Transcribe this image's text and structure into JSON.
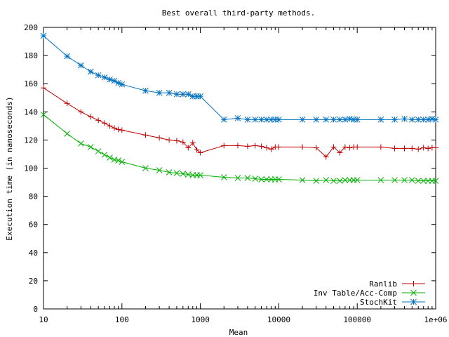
{
  "chart_data": {
    "type": "line",
    "title": "Best overall third-party methods.",
    "xlabel": "Mean",
    "ylabel": "Execution time (in nanoseconds)",
    "xscale": "log",
    "xlim": [
      10,
      1000000
    ],
    "ylim": [
      0,
      200
    ],
    "grid": false,
    "legend_position": "bottom-right",
    "x_ticks": [
      {
        "value": 10,
        "label": "10"
      },
      {
        "value": 100,
        "label": "100"
      },
      {
        "value": 1000,
        "label": "1000"
      },
      {
        "value": 10000,
        "label": "10000"
      },
      {
        "value": 100000,
        "label": "100000"
      },
      {
        "value": 1000000,
        "label": "1e+06"
      }
    ],
    "y_ticks": [
      {
        "value": 0,
        "label": "0"
      },
      {
        "value": 20,
        "label": "20"
      },
      {
        "value": 40,
        "label": "40"
      },
      {
        "value": 60,
        "label": "60"
      },
      {
        "value": 80,
        "label": "80"
      },
      {
        "value": 100,
        "label": "100"
      },
      {
        "value": 120,
        "label": "120"
      },
      {
        "value": 140,
        "label": "140"
      },
      {
        "value": 160,
        "label": "160"
      },
      {
        "value": 180,
        "label": "180"
      },
      {
        "value": 200,
        "label": "200"
      }
    ],
    "series": [
      {
        "name": "Ranlib",
        "color": "#c00000",
        "marker": "plus",
        "x": [
          10,
          20,
          30,
          40,
          50,
          60,
          70,
          80,
          90,
          100,
          200,
          300,
          400,
          500,
          600,
          700,
          800,
          900,
          1000,
          2000,
          3000,
          4000,
          5000,
          6000,
          7000,
          8000,
          9000,
          10000,
          20000,
          30000,
          40000,
          50000,
          60000,
          70000,
          80000,
          90000,
          100000,
          200000,
          300000,
          400000,
          500000,
          600000,
          700000,
          800000,
          900000,
          1000000
        ],
        "y": [
          157,
          146,
          140,
          136.5,
          134,
          132,
          130,
          128.5,
          127.5,
          127,
          123.5,
          121.5,
          120,
          119.5,
          118.5,
          114.5,
          118,
          113,
          111,
          116,
          116,
          115.5,
          116,
          115.5,
          114.5,
          113.5,
          115,
          115,
          115,
          114.5,
          108,
          115,
          111,
          115,
          114.5,
          115,
          115,
          115,
          114,
          114,
          114,
          113.5,
          114.5,
          114,
          114.5,
          114.5
        ]
      },
      {
        "name": "Inv Table/Acc-Comp",
        "color": "#00b000",
        "marker": "cross",
        "x": [
          10,
          20,
          30,
          40,
          50,
          60,
          70,
          80,
          90,
          100,
          200,
          300,
          400,
          500,
          600,
          700,
          800,
          900,
          1000,
          2000,
          3000,
          4000,
          5000,
          6000,
          7000,
          8000,
          9000,
          10000,
          20000,
          30000,
          40000,
          50000,
          60000,
          70000,
          80000,
          90000,
          100000,
          200000,
          300000,
          400000,
          500000,
          600000,
          700000,
          800000,
          900000,
          1000000
        ],
        "y": [
          138,
          124.5,
          117.5,
          115,
          112,
          109.5,
          107.5,
          106,
          105.5,
          104.5,
          100,
          98.5,
          97,
          96.5,
          96,
          95.5,
          95,
          95,
          95,
          93.5,
          93,
          93,
          92.5,
          92,
          92,
          92,
          92,
          92,
          91.5,
          91,
          91.5,
          91,
          91,
          91.5,
          91.5,
          91.5,
          91.5,
          91.5,
          91.5,
          91.5,
          91.5,
          91,
          91,
          91,
          91,
          91
        ]
      },
      {
        "name": "StochKit",
        "color": "#0070c0",
        "marker": "asterisk",
        "x": [
          10,
          20,
          30,
          40,
          50,
          60,
          70,
          80,
          90,
          100,
          200,
          300,
          400,
          500,
          600,
          700,
          800,
          900,
          1000,
          2000,
          3000,
          4000,
          5000,
          6000,
          7000,
          8000,
          9000,
          10000,
          20000,
          30000,
          40000,
          50000,
          60000,
          70000,
          80000,
          90000,
          100000,
          200000,
          300000,
          400000,
          500000,
          600000,
          700000,
          800000,
          900000,
          1000000
        ],
        "y": [
          194,
          179.5,
          173,
          168.5,
          166,
          164.5,
          163,
          162,
          160.5,
          159.5,
          155,
          153.5,
          153.5,
          152.5,
          152.5,
          152.5,
          151,
          151,
          151,
          134.5,
          135.5,
          134.5,
          134.5,
          134.5,
          134.5,
          134.5,
          134.5,
          134.5,
          134.5,
          134.5,
          134.5,
          134.5,
          134.5,
          134.5,
          135,
          134.5,
          134.5,
          134.5,
          134.5,
          135,
          134.5,
          134.5,
          134.5,
          134.5,
          135,
          134.5
        ]
      }
    ]
  }
}
